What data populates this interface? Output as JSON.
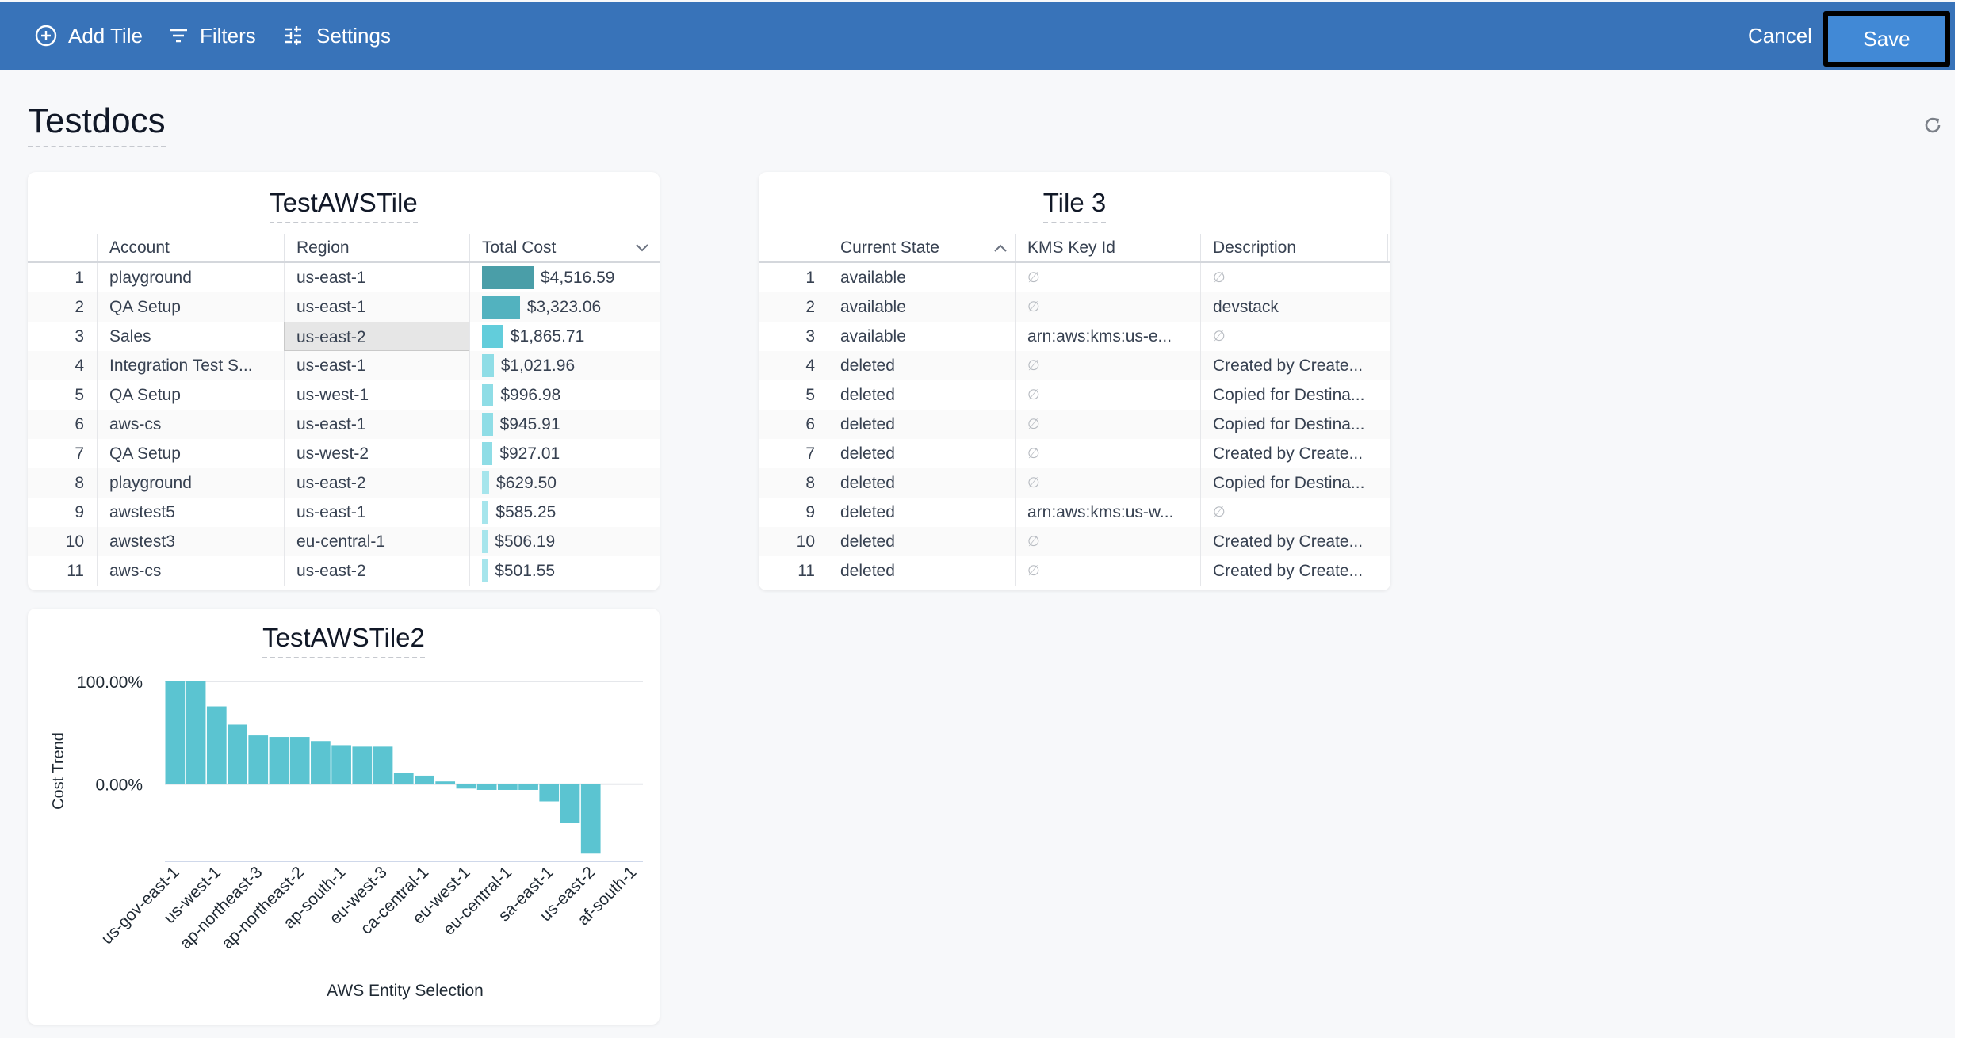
{
  "toolbar": {
    "add_tile": "Add Tile",
    "filters": "Filters",
    "settings": "Settings",
    "cancel": "Cancel",
    "save": "Save",
    "brand_color": "#3873b9",
    "save_color": "#4189d6"
  },
  "page": {
    "title": "Testdocs",
    "refresh_icon": "refresh-icon"
  },
  "tile1": {
    "title": "TestAWSTile",
    "columns": [
      "Account",
      "Region",
      "Total Cost"
    ],
    "sort": {
      "column": "Total Cost",
      "direction": "descending"
    },
    "selected_cell": {
      "row": 3,
      "column": "Region"
    },
    "rows": [
      {
        "n": "1",
        "account": "playground",
        "region": "us-east-1",
        "cost": "$4,516.59",
        "value": 4516.59
      },
      {
        "n": "2",
        "account": "QA Setup",
        "region": "us-east-1",
        "cost": "$3,323.06",
        "value": 3323.06
      },
      {
        "n": "3",
        "account": "Sales",
        "region": "us-east-2",
        "cost": "$1,865.71",
        "value": 1865.71
      },
      {
        "n": "4",
        "account": "Integration Test S...",
        "region": "us-east-1",
        "cost": "$1,021.96",
        "value": 1021.96
      },
      {
        "n": "5",
        "account": "QA Setup",
        "region": "us-west-1",
        "cost": "$996.98",
        "value": 996.98
      },
      {
        "n": "6",
        "account": "aws-cs",
        "region": "us-east-1",
        "cost": "$945.91",
        "value": 945.91
      },
      {
        "n": "7",
        "account": "QA Setup",
        "region": "us-west-2",
        "cost": "$927.01",
        "value": 927.01
      },
      {
        "n": "8",
        "account": "playground",
        "region": "us-east-2",
        "cost": "$629.50",
        "value": 629.5
      },
      {
        "n": "9",
        "account": "awstest5",
        "region": "us-east-1",
        "cost": "$585.25",
        "value": 585.25
      },
      {
        "n": "10",
        "account": "awstest3",
        "region": "eu-central-1",
        "cost": "$506.19",
        "value": 506.19
      },
      {
        "n": "11",
        "account": "aws-cs",
        "region": "us-east-2",
        "cost": "$501.55",
        "value": 501.55
      }
    ]
  },
  "tile3": {
    "title": "Tile 3",
    "columns": [
      "Current State",
      "KMS Key Id",
      "Description"
    ],
    "sort": {
      "column": "Current State",
      "direction": "ascending"
    },
    "null_symbol": "∅",
    "rows": [
      {
        "n": "1",
        "state": "available",
        "kms": null,
        "desc": null
      },
      {
        "n": "2",
        "state": "available",
        "kms": null,
        "desc": "devstack"
      },
      {
        "n": "3",
        "state": "available",
        "kms": "arn:aws:kms:us-e...",
        "desc": null
      },
      {
        "n": "4",
        "state": "deleted",
        "kms": null,
        "desc": "Created by Create..."
      },
      {
        "n": "5",
        "state": "deleted",
        "kms": null,
        "desc": "Copied for Destina..."
      },
      {
        "n": "6",
        "state": "deleted",
        "kms": null,
        "desc": "Copied for Destina..."
      },
      {
        "n": "7",
        "state": "deleted",
        "kms": null,
        "desc": "Created by Create..."
      },
      {
        "n": "8",
        "state": "deleted",
        "kms": null,
        "desc": "Copied for Destina..."
      },
      {
        "n": "9",
        "state": "deleted",
        "kms": "arn:aws:kms:us-w...",
        "desc": null
      },
      {
        "n": "10",
        "state": "deleted",
        "kms": null,
        "desc": "Created by Create..."
      },
      {
        "n": "11",
        "state": "deleted",
        "kms": null,
        "desc": "Created by Create..."
      }
    ]
  },
  "chart_data": {
    "type": "bar",
    "title": "TestAWSTile2",
    "xlabel": "AWS Entity Selection",
    "ylabel": "Cost Trend",
    "ylim": [
      -75,
      100
    ],
    "yticks": [
      0,
      100
    ],
    "ytick_labels": [
      "0.00%",
      "100.00%"
    ],
    "grid": true,
    "color": "#5bc4d1",
    "categories": [
      "us-gov-east-1",
      "",
      "us-west-1",
      "",
      "ap-northeast-3",
      "",
      "ap-northeast-2",
      "",
      "ap-south-1",
      "",
      "eu-west-3",
      "",
      "ca-central-1",
      "",
      "eu-west-1",
      "",
      "eu-central-1",
      "",
      "sa-east-1",
      "",
      "us-east-2",
      "",
      "af-south-1"
    ],
    "values": [
      100,
      100,
      75.7,
      58,
      47.5,
      46,
      46,
      42,
      38,
      36.5,
      36.5,
      11,
      8.3,
      2.7,
      -4.3,
      -5.6,
      -5.6,
      -5.6,
      -16.8,
      -38,
      -67.5,
      0,
      0
    ]
  }
}
